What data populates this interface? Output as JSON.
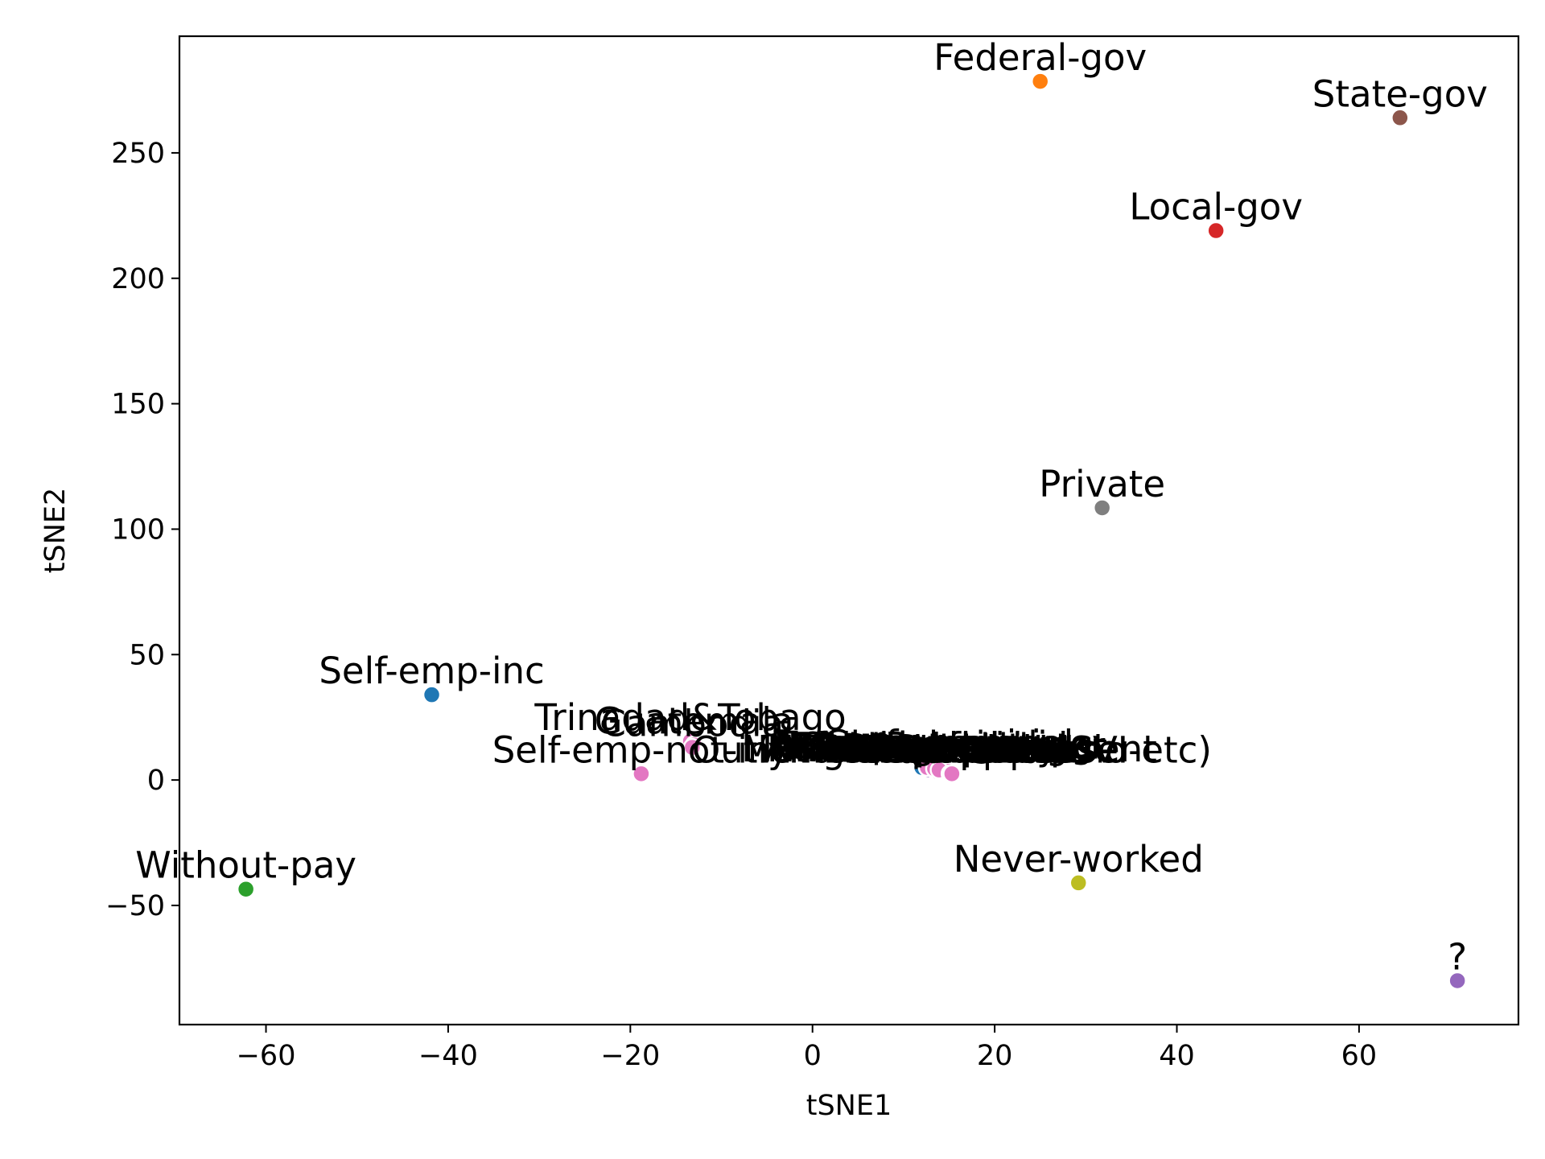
{
  "chart_data": {
    "type": "scatter",
    "xlabel": "tSNE1",
    "ylabel": "tSNE2",
    "xlim": [
      -69.5,
      77.5
    ],
    "ylim": [
      -97.5,
      296.5
    ],
    "grid": false,
    "xticks": [
      -60,
      -40,
      -20,
      0,
      20,
      40,
      60
    ],
    "yticks": [
      -50,
      0,
      50,
      100,
      150,
      200,
      250
    ],
    "xtick_labels": [
      "−60",
      "−40",
      "−20",
      "0",
      "20",
      "40",
      "60"
    ],
    "ytick_labels": [
      "−50",
      "0",
      "50",
      "100",
      "150",
      "200",
      "250"
    ],
    "points": [
      {
        "label": "Federal-gov",
        "x": 25.0,
        "y": 278.5,
        "color": "#ff7f0e"
      },
      {
        "label": "State-gov",
        "x": 64.5,
        "y": 264.0,
        "color": "#8c564b"
      },
      {
        "label": "Local-gov",
        "x": 44.3,
        "y": 219.0,
        "color": "#d62728"
      },
      {
        "label": "Private",
        "x": 31.8,
        "y": 108.5,
        "color": "#7f7f7f"
      },
      {
        "label": "Self-emp-inc",
        "x": -41.8,
        "y": 34.0,
        "color": "#1f77b4"
      },
      {
        "label": "Trinadad&Tobago",
        "x": -13.4,
        "y": 15.5,
        "color": "#e377c2"
      },
      {
        "label": "Guatemala",
        "x": -13.0,
        "y": 14.0,
        "color": "#e377c2"
      },
      {
        "label": "Cambodia",
        "x": -13.2,
        "y": 13.0,
        "color": "#e377c2"
      },
      {
        "label": "Self-emp-not-inc",
        "x": -18.8,
        "y": 2.5,
        "color": "#e377c2"
      },
      {
        "label": "Other-relative",
        "x": 12.2,
        "y": 4.0,
        "color": "#e377c2"
      },
      {
        "label": "Priv-house-serv",
        "x": 12.6,
        "y": 3.5,
        "color": "#e377c2"
      },
      {
        "label": "Handlers-cleaners",
        "x": 13.0,
        "y": 3.0,
        "color": "#e377c2"
      },
      {
        "label": "Protective-serv",
        "x": 13.5,
        "y": 3.0,
        "color": "#e377c2"
      },
      {
        "label": "Tech-support",
        "x": 14.0,
        "y": 2.5,
        "color": "#e377c2"
      },
      {
        "label": "Never-married",
        "x": 14.4,
        "y": 2.5,
        "color": "#e377c2"
      },
      {
        "label": "Unmarried",
        "x": 14.8,
        "y": 2.5,
        "color": "#e377c2"
      },
      {
        "label": "Armed-Forces",
        "x": 15.2,
        "y": 2.5,
        "color": "#e377c2"
      },
      {
        "label": "Adm-clerical",
        "x": 12.4,
        "y": 4.5,
        "color": "#bcbd22"
      },
      {
        "label": "Doctorate",
        "x": 13.2,
        "y": 3.5,
        "color": "#17becf"
      },
      {
        "label": "Other-service",
        "x": 13.8,
        "y": 3.0,
        "color": "#e377c2"
      },
      {
        "label": "Amer-Indian-Eskimo",
        "x": 14.6,
        "y": 2.5,
        "color": "#e377c2"
      },
      {
        "label": "Farming-fishing",
        "x": 12.8,
        "y": 4.0,
        "color": "#9467bd"
      },
      {
        "label": "Sales",
        "x": 14.2,
        "y": 3.0,
        "color": "#e377c2"
      },
      {
        "label": "Exec-managerial",
        "x": 12.0,
        "y": 5.0,
        "color": "#1f77b4"
      },
      {
        "label": "Prof-specialty",
        "x": 13.6,
        "y": 3.5,
        "color": "#e377c2"
      },
      {
        "label": "Married-spouse-absent",
        "x": 15.0,
        "y": 3.0,
        "color": "#e377c2"
      },
      {
        "label": "Craft-repair",
        "x": 12.6,
        "y": 5.0,
        "color": "#e377c2"
      },
      {
        "label": "Transport-moving",
        "x": 13.4,
        "y": 4.5,
        "color": "#e377c2"
      },
      {
        "label": "Machine-op-inspct",
        "x": 14.1,
        "y": 3.5,
        "color": "#e377c2"
      },
      {
        "label": "Divorced",
        "x": 14.9,
        "y": 3.5,
        "color": "#e377c2"
      },
      {
        "label": "Asian-Pac-Islander",
        "x": 13.9,
        "y": 4.0,
        "color": "#e377c2"
      },
      {
        "label": "Married-AF-spouse",
        "x": 15.1,
        "y": 2.5,
        "color": "#e377c2"
      },
      {
        "label": "Outlying-US(Guam-USVI-etc)",
        "x": 15.3,
        "y": 2.5,
        "color": "#e377c2"
      },
      {
        "label": "Never-worked",
        "x": 29.2,
        "y": -41.0,
        "color": "#bcbd22"
      },
      {
        "label": "Without-pay",
        "x": -62.2,
        "y": -43.5,
        "color": "#2ca02c"
      },
      {
        "label": "?",
        "x": 70.8,
        "y": -80.0,
        "color": "#9467bd"
      }
    ]
  }
}
